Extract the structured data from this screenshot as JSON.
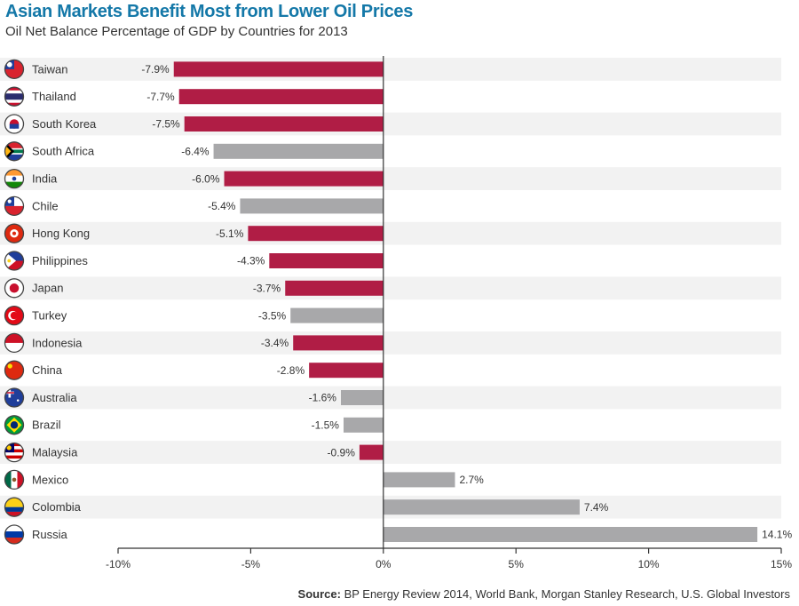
{
  "title": "Asian Markets Benefit Most from Lower Oil Prices",
  "subtitle": "Oil Net Balance Percentage of GDP by Countries for 2013",
  "source_label": "Source:",
  "source_text": "BP Energy Review 2014, World Bank, Morgan Stanley Research, U.S. Global Investors",
  "colors": {
    "asian": "#b01d45",
    "other": "#a8a8aa",
    "stripe": "#f2f2f2",
    "axis": "#333333"
  },
  "chart_data": {
    "type": "bar",
    "orientation": "horizontal",
    "title": "Asian Markets Benefit Most from Lower Oil Prices",
    "subtitle": "Oil Net Balance Percentage of GDP by Countries for 2013",
    "categories": [
      "Taiwan",
      "Thailand",
      "South Korea",
      "South Africa",
      "India",
      "Chile",
      "Hong Kong",
      "Philippines",
      "Japan",
      "Turkey",
      "Indonesia",
      "China",
      "Australia",
      "Brazil",
      "Malaysia",
      "Mexico",
      "Colombia",
      "Russia"
    ],
    "values": [
      -7.9,
      -7.7,
      -7.5,
      -6.4,
      -6.0,
      -5.4,
      -5.1,
      -4.3,
      -3.7,
      -3.5,
      -3.4,
      -2.8,
      -1.6,
      -1.5,
      -0.9,
      2.7,
      7.4,
      14.1
    ],
    "value_labels": [
      "-7.9%",
      "-7.7%",
      "-7.5%",
      "-6.4%",
      "-6.0%",
      "-5.4%",
      "-5.1%",
      "-4.3%",
      "-3.7%",
      "-3.5%",
      "-3.4%",
      "-2.8%",
      "-1.6%",
      "-1.5%",
      "-0.9%",
      "2.7%",
      "7.4%",
      "14.1%"
    ],
    "highlight": [
      true,
      true,
      true,
      false,
      true,
      false,
      true,
      true,
      true,
      false,
      true,
      true,
      false,
      false,
      true,
      false,
      false,
      false
    ],
    "xlim": [
      -10,
      15
    ],
    "xticks": [
      -10,
      -5,
      0,
      5,
      10,
      15
    ],
    "xtick_labels": [
      "-10%",
      "-5%",
      "0%",
      "5%",
      "10%",
      "15%"
    ],
    "xlabel": "",
    "ylabel": "",
    "grid": false,
    "legend": "none"
  },
  "flag_icons": [
    "taiwan-flag-icon",
    "thailand-flag-icon",
    "south-korea-flag-icon",
    "south-africa-flag-icon",
    "india-flag-icon",
    "chile-flag-icon",
    "hong-kong-flag-icon",
    "philippines-flag-icon",
    "japan-flag-icon",
    "turkey-flag-icon",
    "indonesia-flag-icon",
    "china-flag-icon",
    "australia-flag-icon",
    "brazil-flag-icon",
    "malaysia-flag-icon",
    "mexico-flag-icon",
    "colombia-flag-icon",
    "russia-flag-icon"
  ]
}
